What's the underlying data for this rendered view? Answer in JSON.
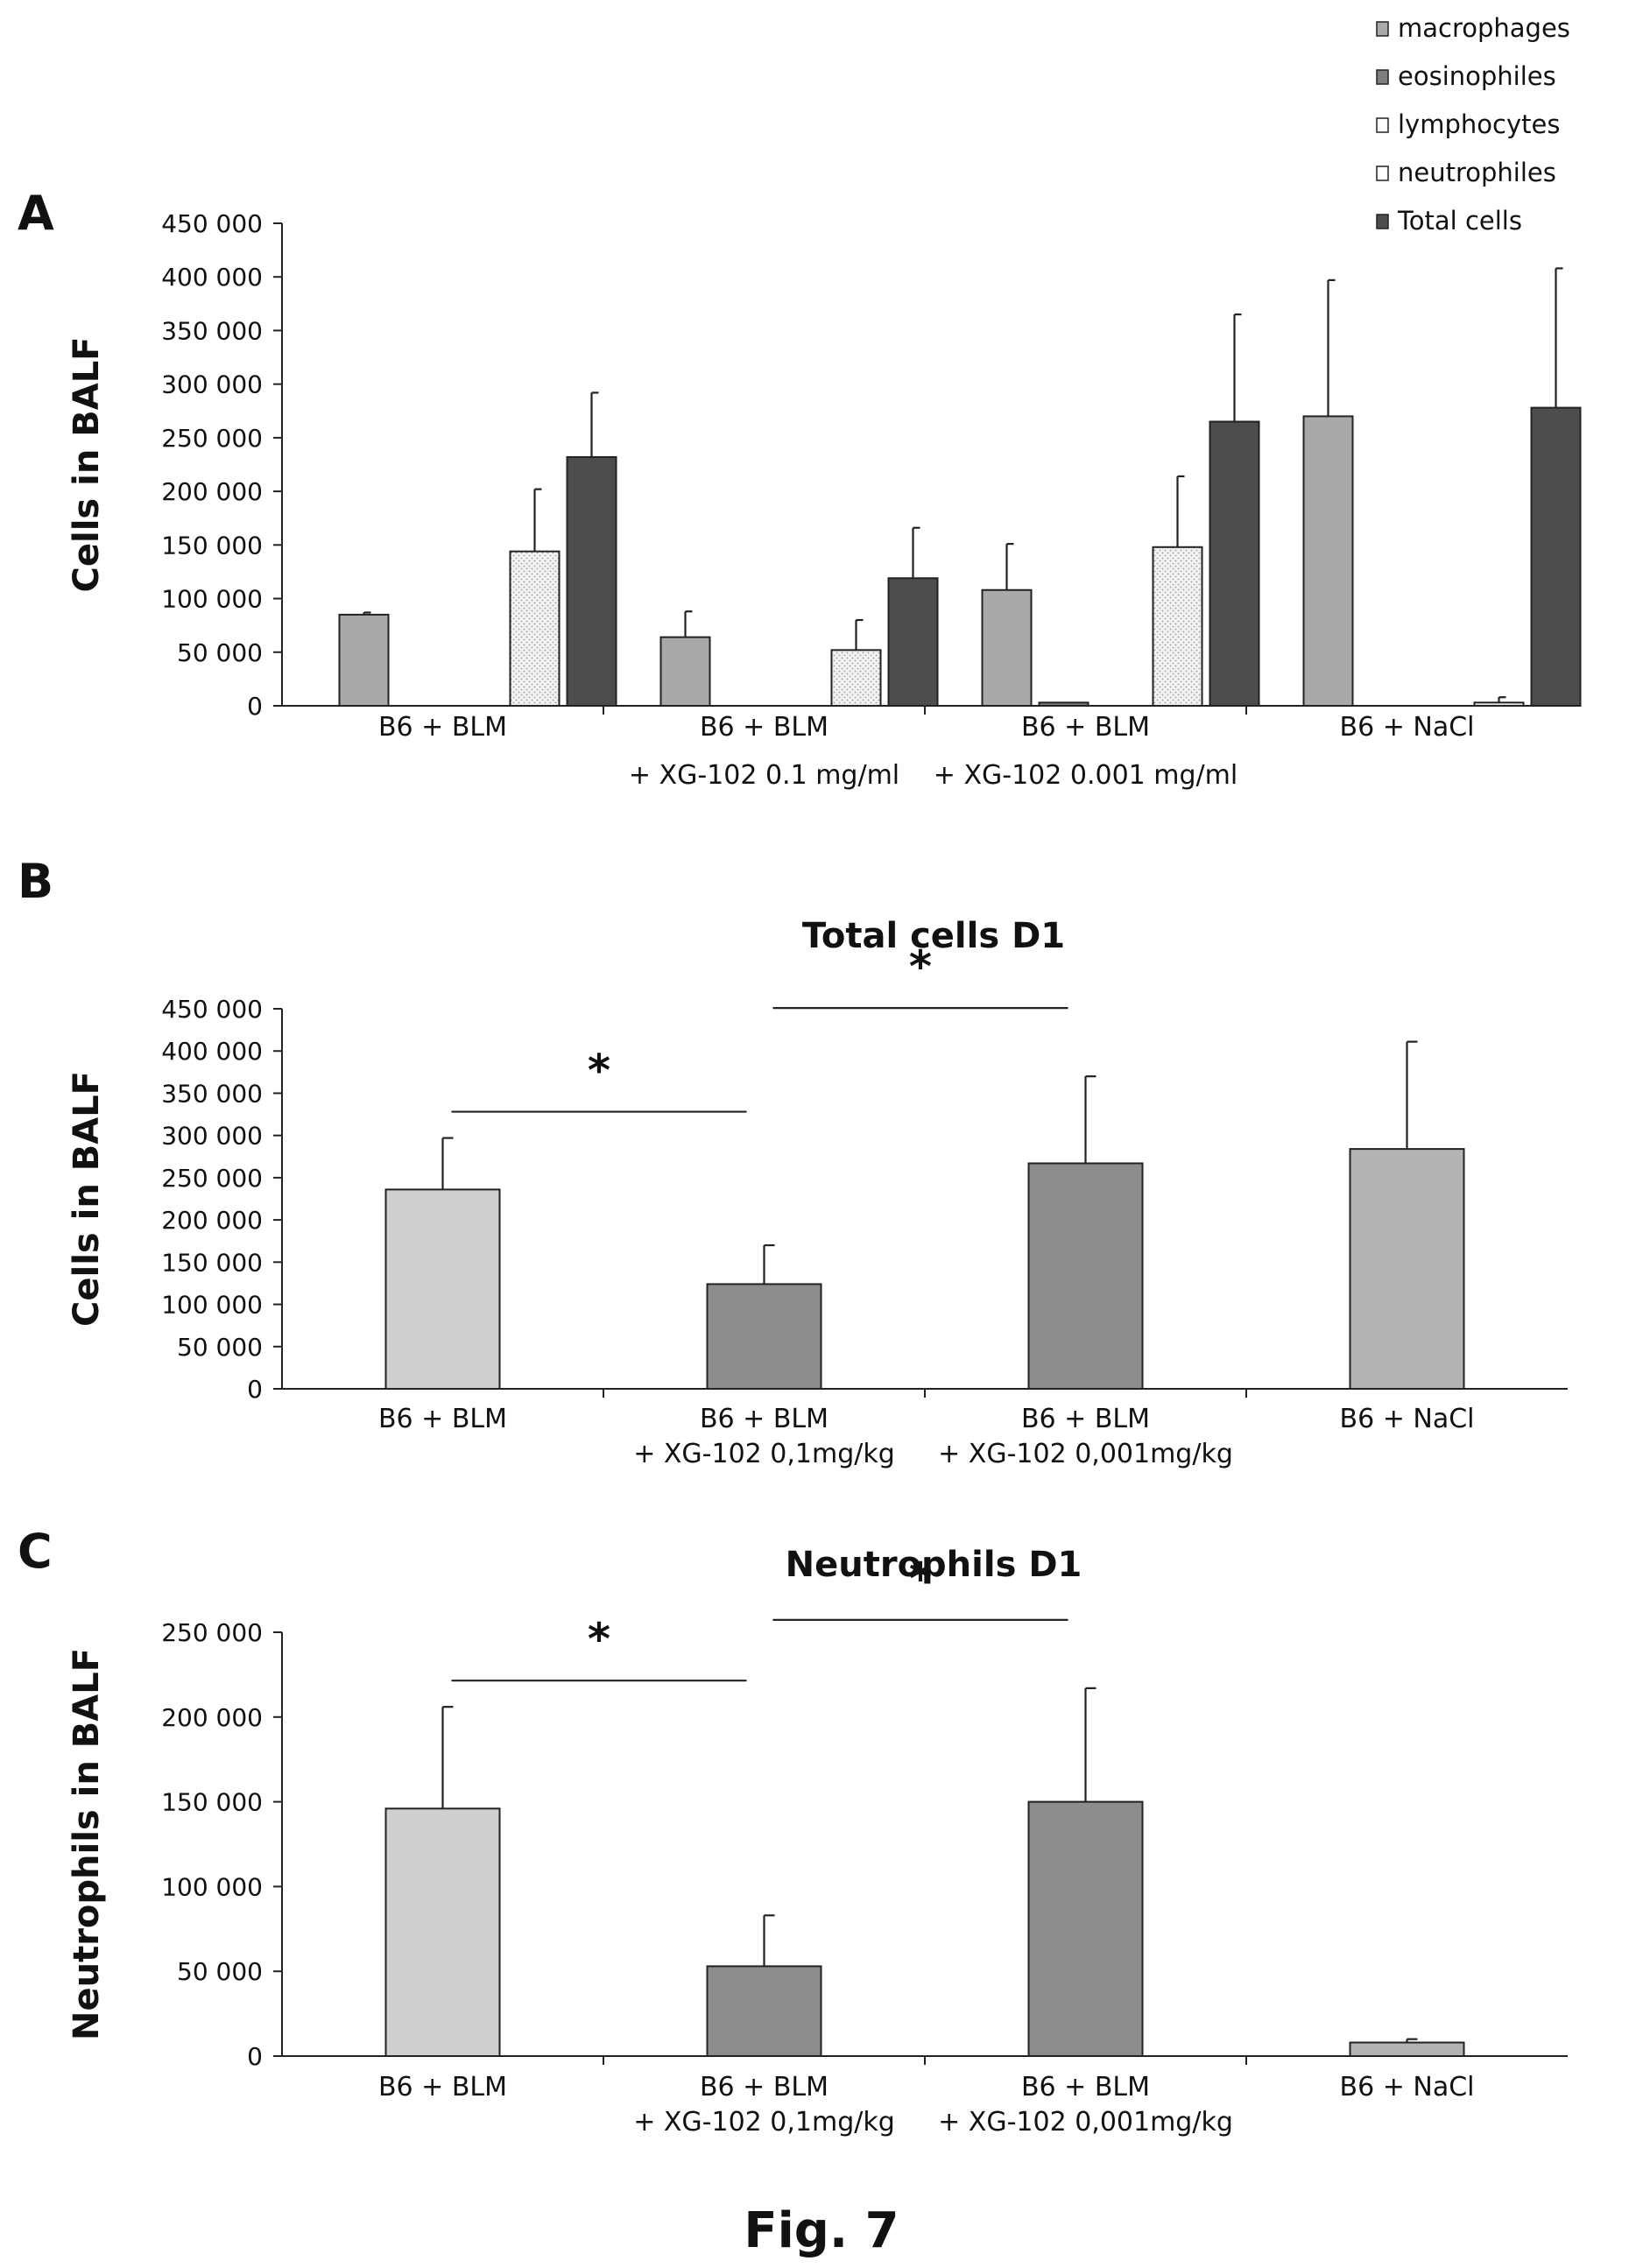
{
  "figure_label": "Fig. 7",
  "colors": {
    "macrophages": "#a9a9a9",
    "eosinophiles": "#7d7d7d",
    "lymphocytes": "#e8e8e8",
    "neutrophiles": "#f3f3f3",
    "total": "#4d4d4d",
    "light_bar": "#cfcfcf",
    "mid_bar": "#8c8c8c",
    "nacl_bar": "#b3b3b3"
  },
  "chart_data": [
    {
      "panel": "A",
      "type": "bar",
      "title": "",
      "ylabel": "Cells in BALF",
      "ylim": [
        0,
        450000
      ],
      "yticks": [
        "0",
        "50 000",
        "100 000",
        "150 000",
        "200 000",
        "250 000",
        "300 000",
        "350 000",
        "400 000",
        "450 000"
      ],
      "legend_position": "top-right",
      "categories": [
        [
          "B6 + BLM"
        ],
        [
          "B6 + BLM",
          "+ XG-102 0.1 mg/ml"
        ],
        [
          "B6 + BLM",
          "+ XG-102 0.001 mg/ml"
        ],
        [
          "B6 + NaCl"
        ]
      ],
      "series": [
        {
          "name": "macrophages",
          "values": [
            85000,
            64000,
            108000,
            270000
          ],
          "errors": [
            2000,
            24000,
            43000,
            127000
          ]
        },
        {
          "name": "eosinophiles",
          "values": [
            0,
            0,
            3000,
            0
          ],
          "errors": [
            0,
            0,
            0,
            0
          ]
        },
        {
          "name": "lymphocytes",
          "values": [
            0,
            0,
            0,
            0
          ],
          "errors": [
            0,
            0,
            0,
            0
          ]
        },
        {
          "name": "neutrophiles",
          "values": [
            144000,
            52000,
            148000,
            3000
          ],
          "errors": [
            58000,
            28000,
            66000,
            5000
          ]
        },
        {
          "name": "Total cells",
          "values": [
            232000,
            119000,
            265000,
            278000
          ],
          "errors": [
            60000,
            47000,
            100000,
            130000
          ]
        }
      ]
    },
    {
      "panel": "B",
      "type": "bar",
      "title": "Total cells D1",
      "ylabel": "Cells in BALF",
      "ylim": [
        0,
        450000
      ],
      "yticks": [
        "0",
        "50 000",
        "100 000",
        "150 000",
        "200 000",
        "250 000",
        "300 000",
        "350 000",
        "400 000",
        "450 000"
      ],
      "categories": [
        [
          "B6 + BLM"
        ],
        [
          "B6 + BLM",
          "+ XG-102 0,1mg/kg"
        ],
        [
          "B6 + BLM",
          "+ XG-102 0,001mg/kg"
        ],
        [
          "B6 + NaCl"
        ]
      ],
      "values": [
        236000,
        124000,
        267000,
        284000
      ],
      "errors": [
        61000,
        46000,
        103000,
        127000
      ],
      "significance": [
        {
          "from": 0,
          "to": 1,
          "label": "*"
        },
        {
          "from": 1,
          "to": 2,
          "label": "*"
        }
      ]
    },
    {
      "panel": "C",
      "type": "bar",
      "title": "Neutrophils D1",
      "ylabel": "Neutrophils in BALF",
      "ylim": [
        0,
        250000
      ],
      "yticks": [
        "0",
        "50 000",
        "100 000",
        "150 000",
        "200 000",
        "250 000"
      ],
      "categories": [
        [
          "B6 + BLM"
        ],
        [
          "B6 + BLM",
          "+ XG-102 0,1mg/kg"
        ],
        [
          "B6 + BLM",
          "+ XG-102 0,001mg/kg"
        ],
        [
          "B6 + NaCl"
        ]
      ],
      "values": [
        146000,
        53000,
        150000,
        8000
      ],
      "errors": [
        60000,
        30000,
        67000,
        2000
      ],
      "significance": [
        {
          "from": 0,
          "to": 1,
          "label": "*"
        },
        {
          "from": 1,
          "to": 2,
          "label": "*"
        }
      ]
    }
  ]
}
